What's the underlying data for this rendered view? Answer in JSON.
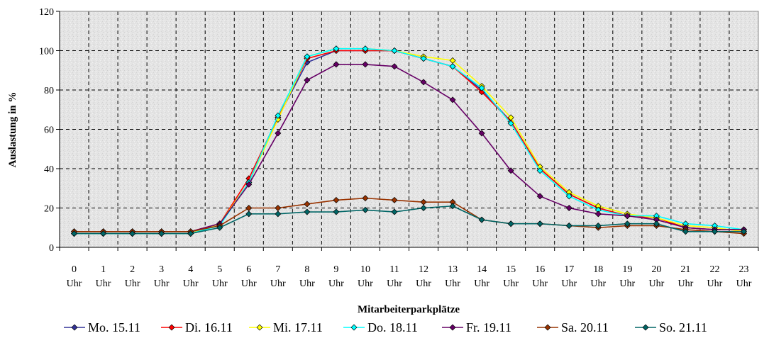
{
  "chart_data": {
    "type": "line",
    "title": "",
    "xlabel": "Mitarbeiterparkplätze",
    "ylabel": "Auslastung in %",
    "ylim": [
      0,
      120
    ],
    "yticks": [
      0,
      20,
      40,
      60,
      80,
      100,
      120
    ],
    "grid": true,
    "legend_position": "bottom",
    "categories": [
      [
        "0",
        "Uhr"
      ],
      [
        "1",
        "Uhr"
      ],
      [
        "2",
        "Uhr"
      ],
      [
        "3",
        "Uhr"
      ],
      [
        "4",
        "Uhr"
      ],
      [
        "5",
        "Uhr"
      ],
      [
        "6",
        "Uhr"
      ],
      [
        "7",
        "Uhr"
      ],
      [
        "8",
        "Uhr"
      ],
      [
        "9",
        "Uhr"
      ],
      [
        "10",
        "Uhr"
      ],
      [
        "11",
        "Uhr"
      ],
      [
        "12",
        "Uhr"
      ],
      [
        "13",
        "Uhr"
      ],
      [
        "14",
        "Uhr"
      ],
      [
        "15",
        "Uhr"
      ],
      [
        "16",
        "Uhr"
      ],
      [
        "17",
        "Uhr"
      ],
      [
        "18",
        "Uhr"
      ],
      [
        "19",
        "Uhr"
      ],
      [
        "20",
        "Uhr"
      ],
      [
        "21",
        "Uhr"
      ],
      [
        "22",
        "Uhr"
      ],
      [
        "23",
        "Uhr"
      ]
    ],
    "series": [
      {
        "name": "Mo. 15.11",
        "color": "#333399",
        "values": [
          8,
          8,
          8,
          8,
          8,
          12,
          33,
          66,
          94,
          100,
          100,
          100,
          96,
          92,
          80,
          64,
          40,
          27,
          20,
          16,
          15,
          10,
          9,
          9
        ]
      },
      {
        "name": "Di. 16.11",
        "color": "#FF0000",
        "values": [
          8,
          8,
          8,
          8,
          8,
          12,
          35,
          66,
          96,
          100,
          100,
          100,
          96,
          92,
          79,
          64,
          40,
          27,
          20,
          16,
          15,
          10,
          9,
          9
        ]
      },
      {
        "name": "Mi. 17.11",
        "color": "#FFFF00",
        "values": [
          7,
          7,
          7,
          7,
          7,
          12,
          33,
          65,
          97,
          101,
          101,
          100,
          97,
          95,
          82,
          66,
          41,
          28,
          21,
          17,
          15,
          11,
          10,
          8
        ]
      },
      {
        "name": "Do. 18.11",
        "color": "#00FFFF",
        "values": [
          7,
          7,
          7,
          7,
          7,
          11,
          33,
          67,
          97,
          101,
          101,
          100,
          96,
          92,
          81,
          63,
          39,
          26,
          19,
          16,
          16,
          12,
          11,
          9
        ]
      },
      {
        "name": "Fr. 19.11",
        "color": "#660066",
        "values": [
          8,
          8,
          8,
          8,
          8,
          12,
          32,
          58,
          85,
          93,
          93,
          92,
          84,
          75,
          58,
          39,
          26,
          20,
          17,
          16,
          14,
          10,
          9,
          9
        ]
      },
      {
        "name": "Sa. 20.11",
        "color": "#993300",
        "values": [
          8,
          8,
          8,
          8,
          8,
          11,
          20,
          20,
          22,
          24,
          25,
          24,
          23,
          23,
          14,
          12,
          12,
          11,
          10,
          11,
          11,
          9,
          8,
          7
        ]
      },
      {
        "name": "So. 21.11",
        "color": "#006666",
        "values": [
          7,
          7,
          7,
          7,
          7,
          10,
          17,
          17,
          18,
          18,
          19,
          18,
          20,
          21,
          14,
          12,
          12,
          11,
          11,
          12,
          12,
          8,
          8,
          8
        ]
      }
    ]
  }
}
